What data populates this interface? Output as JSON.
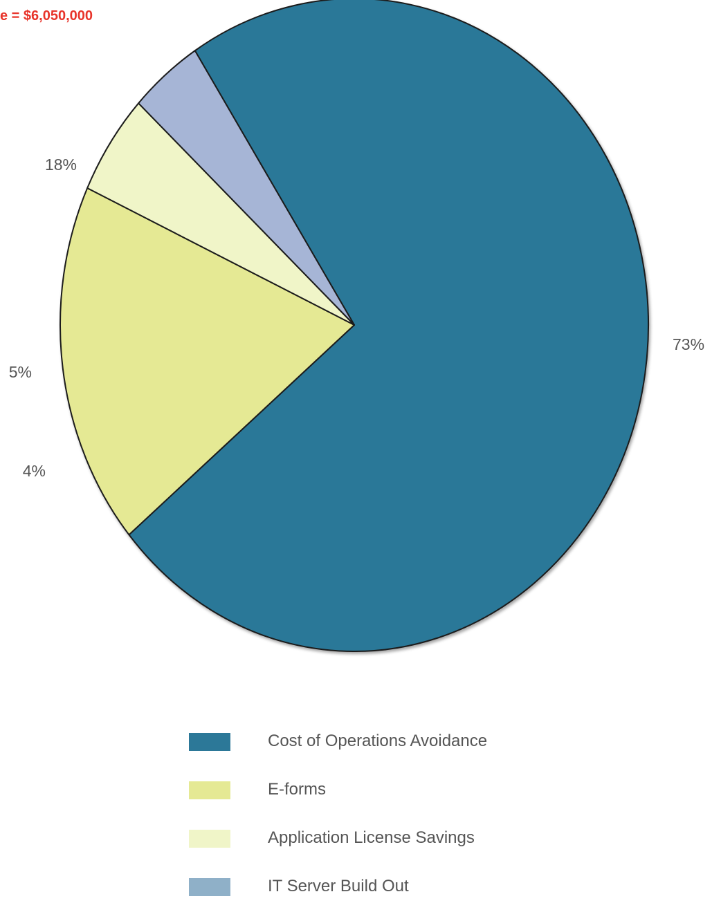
{
  "chart_data": {
    "type": "pie",
    "title": "e = $6,050,000",
    "title_color": "#e8342a",
    "slices": [
      {
        "label": "Cost of Operations Avoidance",
        "value": 73,
        "display": "73%",
        "color": "#2c7898"
      },
      {
        "label": "E-forms",
        "value": 18,
        "display": "18%",
        "color": "#e5e994"
      },
      {
        "label": "Application License Savings",
        "value": 5,
        "display": "5%",
        "color": "#f0f5c8"
      },
      {
        "label": "IT Server Build Out",
        "value": 4,
        "display": "4%",
        "color": "#a6b5d6"
      }
    ],
    "legend_position": "bottom",
    "legend_swatch_colors": [
      "#2c7898",
      "#e5e994",
      "#f0f5c8",
      "#8fb0c8"
    ]
  }
}
